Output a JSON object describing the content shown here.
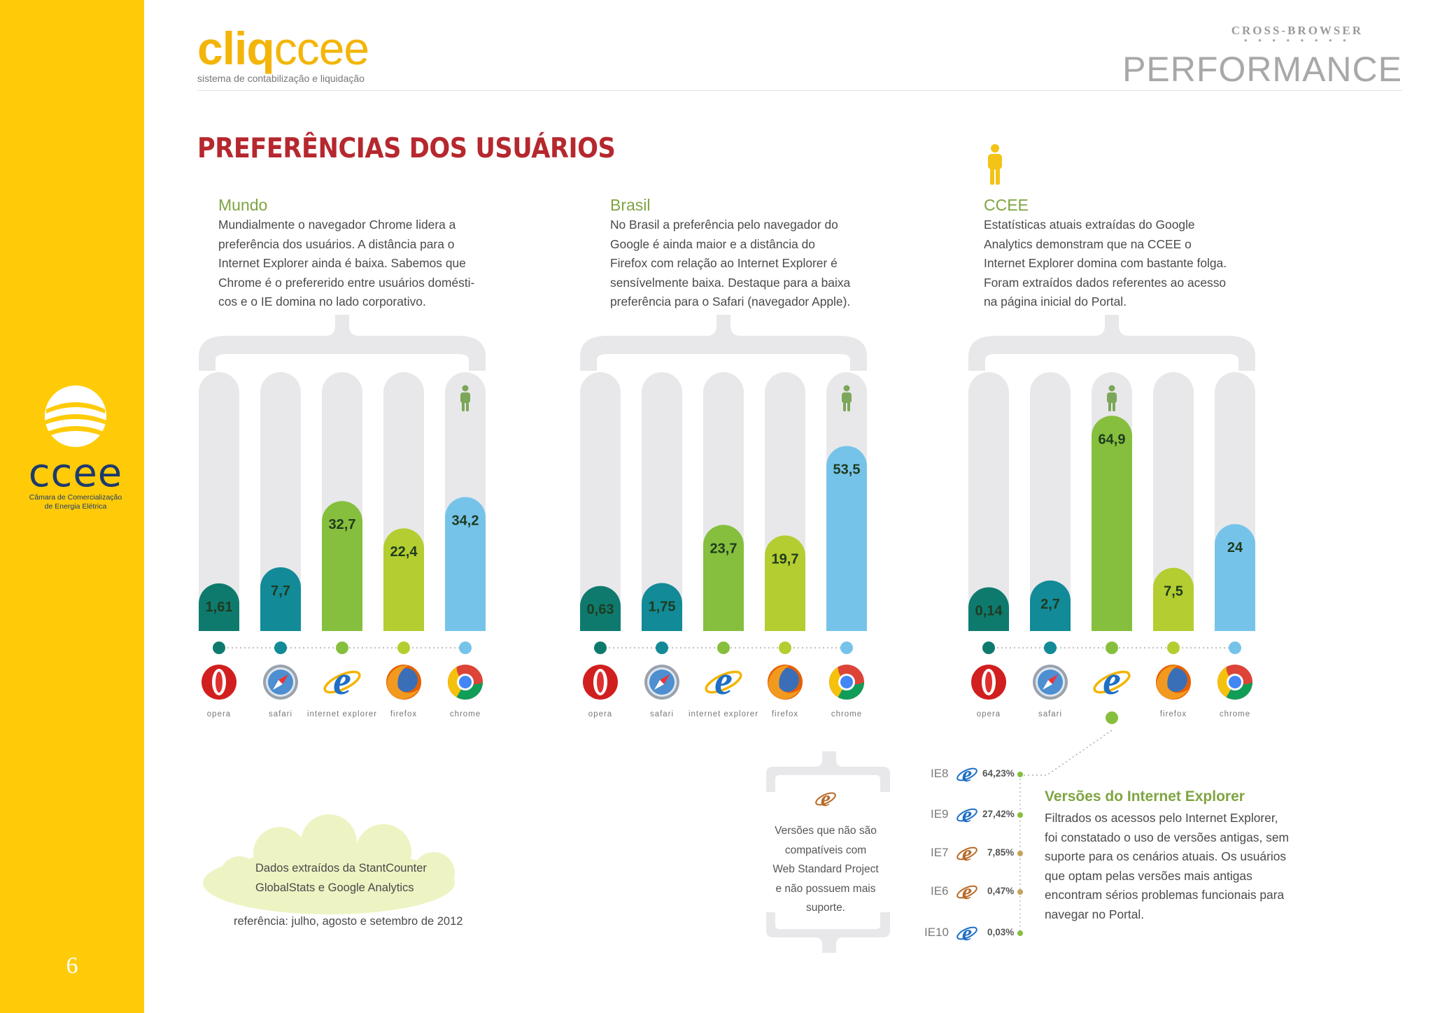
{
  "header": {
    "brand_bold": "cliq",
    "brand_light": "ccee",
    "brand_subtitle": "sistema de contabilização e liquidação",
    "section_top": "CROSS-BROWSER",
    "section_dots": "• • • • • • • •",
    "section_title": "PERFORMANCE"
  },
  "sidebar": {
    "logo_text": "ccee",
    "logo_subtitle_1": "Câmara de Comercialização",
    "logo_subtitle_2": "de Energia Elétrica",
    "page_number": "6"
  },
  "page_title": "PREFERÊNCIAS DOS USUÁRIOS",
  "columns": [
    {
      "heading": "Mundo",
      "text": [
        "Mundialmente o navegador Chrome lidera a",
        "preferência dos usuários. A distância para o",
        "Internet Explorer ainda é baixa. Sabemos que",
        "Chrome é o prefererido entre usuários domésti-",
        "cos e o IE domina no lado corporativo."
      ]
    },
    {
      "heading": "Brasil",
      "text": [
        "No Brasil a preferência pelo navegador do",
        "Google é ainda maior e a distância do",
        "Firefox com relação ao Internet Explorer é",
        "sensívelmente baixa. Destaque para a baixa",
        "preferência para o Safari (navegador Apple)."
      ]
    },
    {
      "heading": "CCEE",
      "text": [
        "Estatísticas atuais extraídas do Google",
        "Analytics demonstram que na CCEE o",
        "Internet Explorer domina com bastante folga.",
        "Foram extraídos dados referentes ao acesso",
        "na página inicial do Portal."
      ]
    }
  ],
  "chart_data": [
    {
      "type": "bar",
      "title": "Mundo",
      "categories": [
        "opera",
        "safari",
        "internet explorer",
        "firefox",
        "chrome"
      ],
      "value_labels": [
        "1,61",
        "7,7",
        "32,7",
        "22,4",
        "34,2"
      ],
      "values": [
        1.61,
        7.7,
        32.7,
        22.4,
        34.2
      ],
      "leader": "chrome",
      "colors": [
        "#0E7A6E",
        "#128A97",
        "#86BF3D",
        "#B4CD30",
        "#76C3EA"
      ]
    },
    {
      "type": "bar",
      "title": "Brasil",
      "categories": [
        "opera",
        "safari",
        "internet explorer",
        "firefox",
        "chrome"
      ],
      "value_labels": [
        "0,63",
        "1,75",
        "23,7",
        "19,7",
        "53,5"
      ],
      "values": [
        0.63,
        1.75,
        23.7,
        19.7,
        53.5
      ],
      "leader": "chrome",
      "colors": [
        "#0E7A6E",
        "#128A97",
        "#86BF3D",
        "#B4CD30",
        "#76C3EA"
      ]
    },
    {
      "type": "bar",
      "title": "CCEE",
      "categories": [
        "opera",
        "safari",
        "",
        "firefox",
        "chrome"
      ],
      "value_labels": [
        "0,14",
        "2,7",
        "64,9",
        "7,5",
        "24"
      ],
      "values": [
        0.14,
        2.7,
        64.9,
        7.5,
        24
      ],
      "leader": "internet explorer",
      "colors": [
        "#0E7A6E",
        "#128A97",
        "#86BF3D",
        "#B4CD30",
        "#76C3EA"
      ]
    },
    {
      "type": "table",
      "title": "Versões do Internet Explorer",
      "rows": [
        {
          "version": "IE8",
          "share": "64,23%",
          "value": 64.23,
          "supported": true
        },
        {
          "version": "IE9",
          "share": "27,42%",
          "value": 27.42,
          "supported": true
        },
        {
          "version": "IE7",
          "share": "7,85%",
          "value": 7.85,
          "supported": false
        },
        {
          "version": "IE6",
          "share": "0,47%",
          "value": 0.47,
          "supported": false
        },
        {
          "version": "IE10",
          "share": "0,03%",
          "value": 0.03,
          "supported": true
        }
      ]
    }
  ],
  "ie_versions": {
    "heading": "Versões do Internet Explorer",
    "text": [
      "Filtrados os acessos pelo Internet Explorer,",
      "foi constatado o uso de versões antigas, sem",
      "suporte para os cenários atuais. Os usuários",
      "que optam pelas versões mais antigas",
      "encontram sérios problemas funcionais para",
      "navegar no Portal."
    ]
  },
  "incompatible_note": [
    "Versões que não são",
    "compatíveis com",
    "Web Standard Project",
    "e não possuem mais",
    "suporte."
  ],
  "source_note": {
    "lines": [
      "Dados extraídos da StantCounter",
      "GlobalStats e Google Analytics"
    ],
    "reference": "referência: julho, agosto e setembro de 2012"
  }
}
